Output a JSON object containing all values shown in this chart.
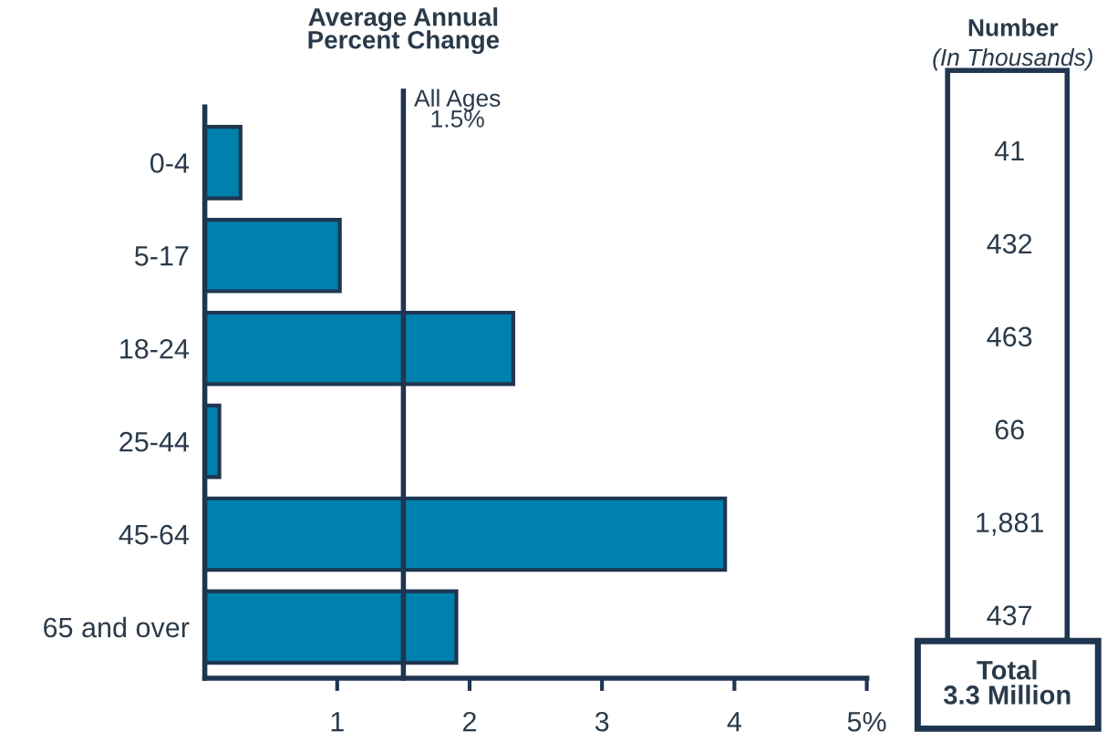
{
  "chart_data": {
    "type": "bar",
    "orientation": "horizontal",
    "title": "Average Annual\nPercent Change",
    "categories": [
      "0-4",
      "5-17",
      "18-24",
      "25-44",
      "45-64",
      "65 and over"
    ],
    "values": [
      0.27,
      1.02,
      2.33,
      0.11,
      3.93,
      1.9
    ],
    "color": "#0080ad",
    "xlim": [
      0,
      5
    ],
    "xticks": [
      1,
      2,
      3,
      4,
      {
        "value": 5,
        "label": "5%"
      }
    ],
    "ref_lines": [
      {
        "axis": "x",
        "value": 1.5,
        "label": "All Ages\n1.5%",
        "color": "#1f3550"
      }
    ],
    "annotations": [
      "Number",
      "(In Thousands)",
      "41",
      "432",
      "463",
      "66",
      "1,881",
      "437",
      "Total\n3.3 Million"
    ],
    "grid": false,
    "legend": false
  }
}
